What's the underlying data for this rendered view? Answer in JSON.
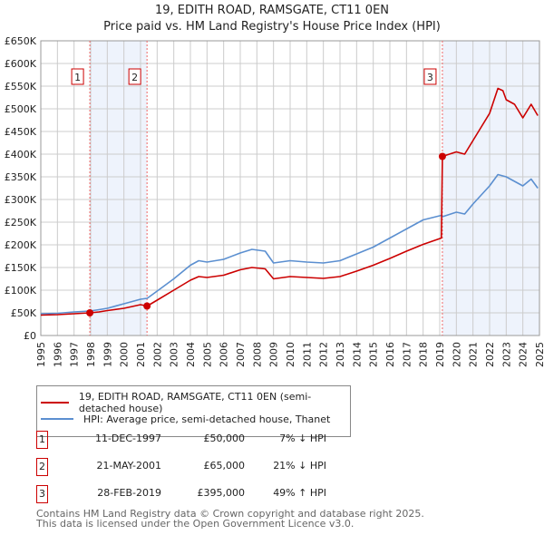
{
  "title_line1": "19, EDITH ROAD, RAMSGATE, CT11 0EN",
  "title_line2": "Price paid vs. HM Land Registry's House Price Index (HPI)",
  "chart_data": {
    "type": "line",
    "title": "19, EDITH ROAD, RAMSGATE, CT11 0EN — Price paid vs. HM Land Registry's House Price Index (HPI)",
    "xlim": [
      1995,
      2025
    ],
    "ylim": [
      0,
      650000
    ],
    "y_ticks": [
      0,
      50000,
      100000,
      150000,
      200000,
      250000,
      300000,
      350000,
      400000,
      450000,
      500000,
      550000,
      600000,
      650000
    ],
    "y_tick_labels": [
      "£0",
      "£50K",
      "£100K",
      "£150K",
      "£200K",
      "£250K",
      "£300K",
      "£350K",
      "£400K",
      "£450K",
      "£500K",
      "£550K",
      "£600K",
      "£650K"
    ],
    "x_ticks": [
      "1995",
      "1996",
      "1997",
      "1998",
      "1999",
      "2000",
      "2001",
      "2002",
      "2003",
      "2004",
      "2005",
      "2006",
      "2007",
      "2008",
      "2009",
      "2010",
      "2011",
      "2012",
      "2013",
      "2014",
      "2015",
      "2016",
      "2017",
      "2018",
      "2019",
      "2020",
      "2021",
      "2022",
      "2023",
      "2024",
      "2025"
    ],
    "grid": true,
    "series": [
      {
        "name": "19, EDITH ROAD, RAMSGATE, CT11 0EN (semi-detached house)",
        "color": "#cc0000",
        "x": [
          1995,
          1996,
          1997,
          1997.95,
          1998.5,
          1999,
          2000,
          2001,
          2001.4,
          2002,
          2003,
          2004,
          2004.5,
          2005,
          2006,
          2007,
          2007.7,
          2008.5,
          2009,
          2010,
          2011,
          2012,
          2013,
          2014,
          2015,
          2016,
          2017,
          2018,
          2019.1,
          2019.16,
          2020,
          2020.5,
          2021,
          2021.5,
          2022,
          2022.5,
          2022.8,
          2023,
          2023.5,
          2024,
          2024.5,
          2024.9
        ],
        "y": [
          45000,
          46000,
          48000,
          50000,
          52000,
          55000,
          60000,
          68000,
          65000,
          78000,
          100000,
          122000,
          130000,
          128000,
          133000,
          145000,
          150000,
          147000,
          125000,
          130000,
          128000,
          126000,
          130000,
          142000,
          155000,
          170000,
          186000,
          201000,
          215000,
          395000,
          405000,
          400000,
          430000,
          460000,
          490000,
          545000,
          540000,
          520000,
          510000,
          480000,
          510000,
          485000
        ]
      },
      {
        "name": "HPI: Average price, semi-detached house, Thanet",
        "color": "#5b8fd0",
        "x": [
          1995,
          1996,
          1997,
          1997.95,
          1998.5,
          1999,
          2000,
          2001,
          2001.4,
          2002,
          2003,
          2004,
          2004.5,
          2005,
          2006,
          2007,
          2007.7,
          2008.5,
          2009,
          2010,
          2011,
          2012,
          2013,
          2014,
          2015,
          2016,
          2017,
          2018,
          2019.1,
          2019.16,
          2020,
          2020.5,
          2021,
          2021.5,
          2022,
          2022.5,
          2022.8,
          2023,
          2023.5,
          2024,
          2024.5,
          2024.9
        ],
        "y": [
          48000,
          49000,
          52000,
          54000,
          57000,
          60000,
          70000,
          80000,
          82000,
          98000,
          125000,
          155000,
          165000,
          162000,
          168000,
          182000,
          190000,
          186000,
          160000,
          165000,
          162000,
          160000,
          165000,
          180000,
          195000,
          215000,
          235000,
          255000,
          265000,
          262000,
          272000,
          268000,
          290000,
          310000,
          330000,
          355000,
          352000,
          350000,
          340000,
          330000,
          345000,
          325000
        ]
      }
    ],
    "sales": [
      {
        "label": "1",
        "x": 1997.95,
        "y": 50000
      },
      {
        "label": "2",
        "x": 2001.39,
        "y": 65000
      },
      {
        "label": "3",
        "x": 2019.16,
        "y": 395000
      }
    ],
    "shaded_ranges": [
      [
        1997.95,
        2001.39
      ],
      [
        2019.16,
        2025
      ]
    ]
  },
  "legend": {
    "red": "19, EDITH ROAD, RAMSGATE, CT11 0EN (semi-detached house)",
    "blue": "HPI: Average price, semi-detached house, Thanet"
  },
  "transactions": [
    {
      "num": "1",
      "date": "11-DEC-1997",
      "price": "£50,000",
      "hpi": "7% ↓ HPI"
    },
    {
      "num": "2",
      "date": "21-MAY-2001",
      "price": "£65,000",
      "hpi": "21% ↓ HPI"
    },
    {
      "num": "3",
      "date": "28-FEB-2019",
      "price": "£395,000",
      "hpi": "49% ↑ HPI"
    }
  ],
  "footer": {
    "line1": "Contains HM Land Registry data © Crown copyright and database right 2025.",
    "line2": "This data is licensed under the Open Government Licence v3.0."
  }
}
